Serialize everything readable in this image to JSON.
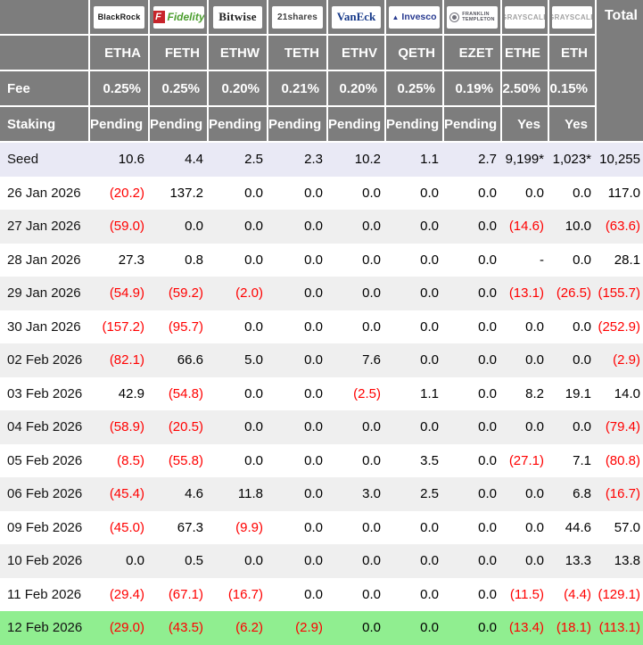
{
  "labels": {
    "fee": "Fee",
    "staking": "Staking",
    "total": "Total"
  },
  "colors": {
    "header_bg": "#7d7d7d",
    "header_text": "#ffffff",
    "negative": "#ff0000",
    "seed_row_bg": "#e9e9f5",
    "alt_row_bg": "#efefef",
    "highlight_row_bg": "#90ee90",
    "fidelity_red": "#c8242b",
    "fidelity_green": "#4c9e2f",
    "vaneck_blue": "#173a8a",
    "invesco_blue": "#283a90",
    "grayscale_gray": "#a3a3a3"
  },
  "providers": [
    {
      "logo_text": "BlackRock",
      "logo_class": "blackrock",
      "ticker": "ETHA",
      "fee": "0.25%",
      "staking": "Pending"
    },
    {
      "logo_text": "Fidelity",
      "logo_icon": "F",
      "logo_class": "fidelity",
      "ticker": "FETH",
      "fee": "0.25%",
      "staking": "Pending"
    },
    {
      "logo_text": "Bitwise",
      "logo_class": "bitwise",
      "ticker": "ETHW",
      "fee": "0.20%",
      "staking": "Pending"
    },
    {
      "logo_text": "21shares",
      "logo_class": "shares21",
      "ticker": "TETH",
      "fee": "0.21%",
      "staking": "Pending"
    },
    {
      "logo_text": "VanEck",
      "logo_class": "vaneck",
      "ticker": "ETHV",
      "fee": "0.20%",
      "staking": "Pending"
    },
    {
      "logo_text": "Invesco",
      "logo_icon": "▲",
      "logo_class": "invesco",
      "ticker": "QETH",
      "fee": "0.25%",
      "staking": "Pending"
    },
    {
      "logo_text": "FRANKLIN",
      "logo_text2": "TEMPLETON",
      "logo_class": "franklin",
      "ticker": "EZET",
      "fee": "0.19%",
      "staking": "Pending"
    },
    {
      "logo_text": "GRAYSCALE",
      "logo_class": "grayscale",
      "ticker": "ETHE",
      "fee": "2.50%",
      "staking": "Yes"
    },
    {
      "logo_text": "GRAYSCALE",
      "logo_class": "grayscale",
      "ticker": "ETH",
      "fee": "0.15%",
      "staking": "Yes"
    }
  ],
  "chart_data": {
    "type": "table",
    "columns": [
      "",
      "ETHA",
      "FETH",
      "ETHW",
      "TETH",
      "ETHV",
      "QETH",
      "EZET",
      "ETHE",
      "ETH",
      "Total"
    ],
    "rows": [
      {
        "label": "Seed",
        "values": [
          "10.6",
          "4.4",
          "2.5",
          "2.3",
          "10.2",
          "1.1",
          "2.7",
          "9,199*",
          "1,023*"
        ],
        "total": "10,255",
        "style": "seed"
      },
      {
        "label": "26 Jan 2026",
        "values": [
          "(20.2)",
          "137.2",
          "0.0",
          "0.0",
          "0.0",
          "0.0",
          "0.0",
          "0.0",
          "0.0"
        ],
        "total": "117.0"
      },
      {
        "label": "27 Jan 2026",
        "values": [
          "(59.0)",
          "0.0",
          "0.0",
          "0.0",
          "0.0",
          "0.0",
          "0.0",
          "(14.6)",
          "10.0"
        ],
        "total": "(63.6)"
      },
      {
        "label": "28 Jan 2026",
        "values": [
          "27.3",
          "0.8",
          "0.0",
          "0.0",
          "0.0",
          "0.0",
          "0.0",
          "-",
          "0.0"
        ],
        "total": "28.1"
      },
      {
        "label": "29 Jan 2026",
        "values": [
          "(54.9)",
          "(59.2)",
          "(2.0)",
          "0.0",
          "0.0",
          "0.0",
          "0.0",
          "(13.1)",
          "(26.5)"
        ],
        "total": "(155.7)"
      },
      {
        "label": "30 Jan 2026",
        "values": [
          "(157.2)",
          "(95.7)",
          "0.0",
          "0.0",
          "0.0",
          "0.0",
          "0.0",
          "0.0",
          "0.0"
        ],
        "total": "(252.9)"
      },
      {
        "label": "02 Feb 2026",
        "values": [
          "(82.1)",
          "66.6",
          "5.0",
          "0.0",
          "7.6",
          "0.0",
          "0.0",
          "0.0",
          "0.0"
        ],
        "total": "(2.9)"
      },
      {
        "label": "03 Feb 2026",
        "values": [
          "42.9",
          "(54.8)",
          "0.0",
          "0.0",
          "(2.5)",
          "1.1",
          "0.0",
          "8.2",
          "19.1"
        ],
        "total": "14.0"
      },
      {
        "label": "04 Feb 2026",
        "values": [
          "(58.9)",
          "(20.5)",
          "0.0",
          "0.0",
          "0.0",
          "0.0",
          "0.0",
          "0.0",
          "0.0"
        ],
        "total": "(79.4)"
      },
      {
        "label": "05 Feb 2026",
        "values": [
          "(8.5)",
          "(55.8)",
          "0.0",
          "0.0",
          "0.0",
          "3.5",
          "0.0",
          "(27.1)",
          "7.1"
        ],
        "total": "(80.8)"
      },
      {
        "label": "06 Feb 2026",
        "values": [
          "(45.4)",
          "4.6",
          "11.8",
          "0.0",
          "3.0",
          "2.5",
          "0.0",
          "0.0",
          "6.8"
        ],
        "total": "(16.7)"
      },
      {
        "label": "09 Feb 2026",
        "values": [
          "(45.0)",
          "67.3",
          "(9.9)",
          "0.0",
          "0.0",
          "0.0",
          "0.0",
          "0.0",
          "44.6"
        ],
        "total": "57.0"
      },
      {
        "label": "10 Feb 2026",
        "values": [
          "0.0",
          "0.5",
          "0.0",
          "0.0",
          "0.0",
          "0.0",
          "0.0",
          "0.0",
          "13.3"
        ],
        "total": "13.8"
      },
      {
        "label": "11 Feb 2026",
        "values": [
          "(29.4)",
          "(67.1)",
          "(16.7)",
          "0.0",
          "0.0",
          "0.0",
          "0.0",
          "(11.5)",
          "(4.4)"
        ],
        "total": "(129.1)"
      },
      {
        "label": "12 Feb 2026",
        "values": [
          "(29.0)",
          "(43.5)",
          "(6.2)",
          "(2.9)",
          "0.0",
          "0.0",
          "0.0",
          "(13.4)",
          "(18.1)"
        ],
        "total": "(113.1)",
        "style": "green"
      }
    ]
  }
}
